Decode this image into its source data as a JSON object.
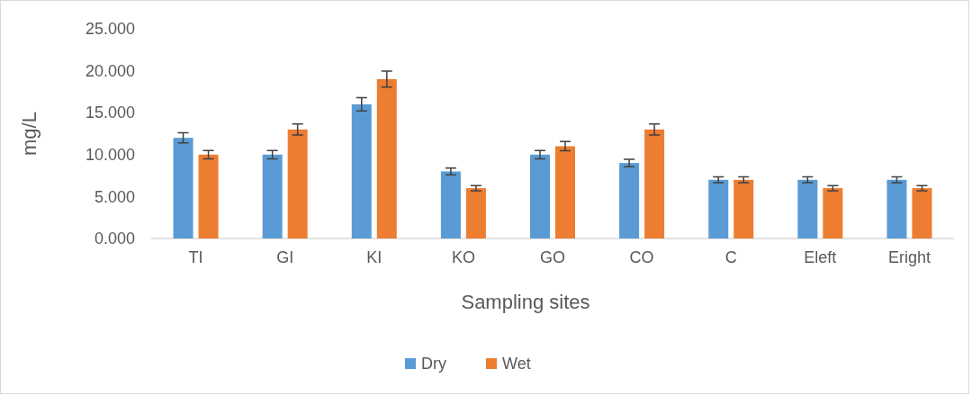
{
  "chart_data": {
    "type": "bar",
    "xlabel": "Sampling sites",
    "ylabel": "mg/L",
    "categories": [
      "TI",
      "GI",
      "KI",
      "KO",
      "GO",
      "CO",
      "C",
      "Eleft",
      "Eright"
    ],
    "series": [
      {
        "name": "Dry",
        "color": "#5b9bd5",
        "values": [
          12,
          10,
          16,
          8,
          10,
          9,
          7,
          7,
          7
        ],
        "errors": [
          0.6,
          0.5,
          0.8,
          0.4,
          0.5,
          0.45,
          0.35,
          0.35,
          0.35
        ]
      },
      {
        "name": "Wet",
        "color": "#ed7d31",
        "values": [
          10,
          13,
          19,
          6,
          11,
          13,
          7,
          6,
          6
        ],
        "errors": [
          0.5,
          0.65,
          0.95,
          0.3,
          0.55,
          0.65,
          0.35,
          0.3,
          0.3
        ]
      }
    ],
    "ylim": [
      0,
      25
    ],
    "yticks": [
      {
        "value": 0,
        "label": "0.000"
      },
      {
        "value": 5,
        "label": "5.000"
      },
      {
        "value": 10,
        "label": "10.000"
      },
      {
        "value": 15,
        "label": "15.000"
      },
      {
        "value": 20,
        "label": "20.000"
      },
      {
        "value": 25,
        "label": "25.000"
      }
    ],
    "grid": false,
    "legend": "bottom"
  }
}
